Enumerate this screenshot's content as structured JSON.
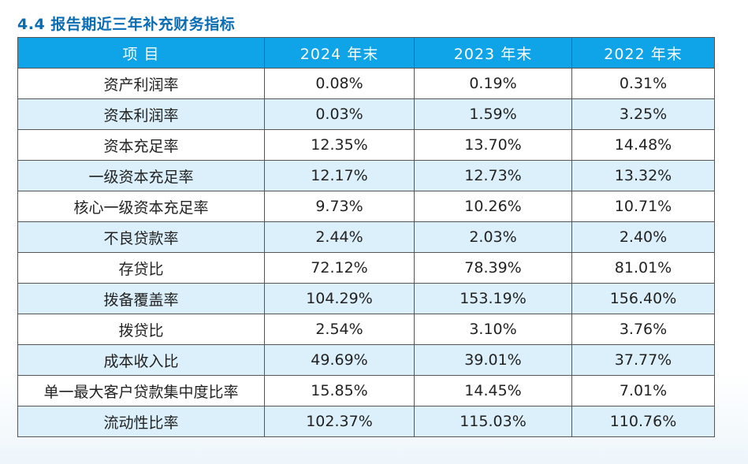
{
  "section": {
    "title": "4.4 报告期近三年补充财务指标"
  },
  "table": {
    "headers": [
      "项 目",
      "2024 年末",
      "2023 年末",
      "2022 年末"
    ],
    "rows": [
      {
        "item": "资产利润率",
        "y2024": "0.08%",
        "y2023": "0.19%",
        "y2022": "0.31%"
      },
      {
        "item": "资本利润率",
        "y2024": "0.03%",
        "y2023": "1.59%",
        "y2022": "3.25%"
      },
      {
        "item": "资本充足率",
        "y2024": "12.35%",
        "y2023": "13.70%",
        "y2022": "14.48%"
      },
      {
        "item": "一级资本充足率",
        "y2024": "12.17%",
        "y2023": "12.73%",
        "y2022": "13.32%"
      },
      {
        "item": "核心一级资本充足率",
        "y2024": "9.73%",
        "y2023": "10.26%",
        "y2022": "10.71%"
      },
      {
        "item": "不良贷款率",
        "y2024": "2.44%",
        "y2023": "2.03%",
        "y2022": "2.40%"
      },
      {
        "item": "存贷比",
        "y2024": "72.12%",
        "y2023": "78.39%",
        "y2022": "81.01%"
      },
      {
        "item": "拨备覆盖率",
        "y2024": "104.29%",
        "y2023": "153.19%",
        "y2022": "156.40%"
      },
      {
        "item": "拨贷比",
        "y2024": "2.54%",
        "y2023": "3.10%",
        "y2022": "3.76%"
      },
      {
        "item": "成本收入比",
        "y2024": "49.69%",
        "y2023": "39.01%",
        "y2022": "37.77%"
      },
      {
        "item": "单一最大客户贷款集中度比率",
        "y2024": "15.85%",
        "y2023": "14.45%",
        "y2022": "7.01%"
      },
      {
        "item": "流动性比率",
        "y2024": "102.37%",
        "y2023": "115.03%",
        "y2022": "110.76%"
      }
    ]
  },
  "colors": {
    "title": "#0a6cb3",
    "header_bg": "#0fa3e8",
    "header_text": "#ffffff",
    "row_alt_bg": "#dcf0fb",
    "border": "#555555"
  }
}
